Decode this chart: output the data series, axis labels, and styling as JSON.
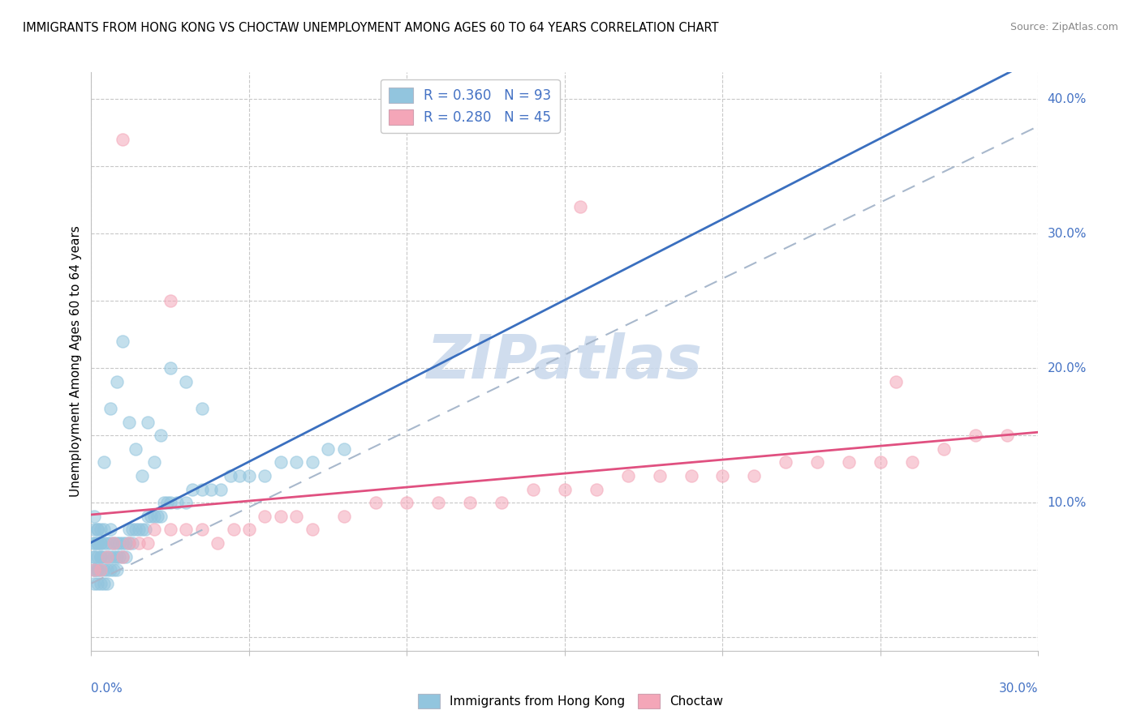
{
  "title": "IMMIGRANTS FROM HONG KONG VS CHOCTAW UNEMPLOYMENT AMONG AGES 60 TO 64 YEARS CORRELATION CHART",
  "source": "Source: ZipAtlas.com",
  "ylabel": "Unemployment Among Ages 60 to 64 years",
  "xlim": [
    0.0,
    0.3
  ],
  "ylim": [
    -0.01,
    0.42
  ],
  "blue_color": "#92c5de",
  "pink_color": "#f4a6b8",
  "blue_line_color": "#3a6fbf",
  "pink_line_color": "#e05080",
  "blue_trend_color": "#9ab8d8",
  "watermark_color": "#c8d8ec",
  "grid_color": "#c8c8c8",
  "right_label_color": "#4472C4",
  "blue_x": [
    0.001,
    0.001,
    0.001,
    0.001,
    0.001,
    0.001,
    0.001,
    0.001,
    0.001,
    0.002,
    0.002,
    0.002,
    0.002,
    0.002,
    0.002,
    0.002,
    0.002,
    0.003,
    0.003,
    0.003,
    0.003,
    0.003,
    0.003,
    0.003,
    0.004,
    0.004,
    0.004,
    0.004,
    0.004,
    0.005,
    0.005,
    0.005,
    0.005,
    0.006,
    0.006,
    0.006,
    0.006,
    0.007,
    0.007,
    0.007,
    0.008,
    0.008,
    0.008,
    0.009,
    0.009,
    0.01,
    0.01,
    0.011,
    0.011,
    0.012,
    0.012,
    0.013,
    0.013,
    0.014,
    0.015,
    0.016,
    0.017,
    0.018,
    0.019,
    0.02,
    0.021,
    0.022,
    0.023,
    0.024,
    0.025,
    0.027,
    0.03,
    0.032,
    0.035,
    0.038,
    0.041,
    0.044,
    0.047,
    0.05,
    0.055,
    0.06,
    0.065,
    0.07,
    0.075,
    0.08,
    0.004,
    0.006,
    0.008,
    0.01,
    0.012,
    0.014,
    0.016,
    0.018,
    0.02,
    0.022,
    0.025,
    0.03,
    0.035
  ],
  "blue_y": [
    0.04,
    0.05,
    0.05,
    0.06,
    0.06,
    0.07,
    0.07,
    0.08,
    0.09,
    0.04,
    0.05,
    0.05,
    0.06,
    0.07,
    0.07,
    0.08,
    0.08,
    0.04,
    0.05,
    0.06,
    0.06,
    0.07,
    0.07,
    0.08,
    0.04,
    0.05,
    0.06,
    0.07,
    0.08,
    0.04,
    0.05,
    0.06,
    0.07,
    0.05,
    0.06,
    0.07,
    0.08,
    0.05,
    0.06,
    0.07,
    0.05,
    0.06,
    0.07,
    0.06,
    0.07,
    0.06,
    0.07,
    0.06,
    0.07,
    0.07,
    0.08,
    0.07,
    0.08,
    0.08,
    0.08,
    0.08,
    0.08,
    0.09,
    0.09,
    0.09,
    0.09,
    0.09,
    0.1,
    0.1,
    0.1,
    0.1,
    0.1,
    0.11,
    0.11,
    0.11,
    0.11,
    0.12,
    0.12,
    0.12,
    0.12,
    0.13,
    0.13,
    0.13,
    0.14,
    0.14,
    0.13,
    0.17,
    0.19,
    0.22,
    0.16,
    0.14,
    0.12,
    0.16,
    0.13,
    0.15,
    0.2,
    0.19,
    0.17
  ],
  "pink_x": [
    0.001,
    0.003,
    0.005,
    0.007,
    0.01,
    0.012,
    0.015,
    0.018,
    0.02,
    0.025,
    0.03,
    0.035,
    0.04,
    0.045,
    0.05,
    0.055,
    0.06,
    0.065,
    0.07,
    0.08,
    0.09,
    0.1,
    0.11,
    0.12,
    0.13,
    0.14,
    0.15,
    0.16,
    0.17,
    0.18,
    0.19,
    0.2,
    0.21,
    0.22,
    0.23,
    0.24,
    0.25,
    0.26,
    0.27,
    0.28,
    0.29,
    0.01,
    0.025,
    0.155,
    0.255
  ],
  "pink_y": [
    0.05,
    0.05,
    0.06,
    0.07,
    0.06,
    0.07,
    0.07,
    0.07,
    0.08,
    0.08,
    0.08,
    0.08,
    0.07,
    0.08,
    0.08,
    0.09,
    0.09,
    0.09,
    0.08,
    0.09,
    0.1,
    0.1,
    0.1,
    0.1,
    0.1,
    0.11,
    0.11,
    0.11,
    0.12,
    0.12,
    0.12,
    0.12,
    0.12,
    0.13,
    0.13,
    0.13,
    0.13,
    0.13,
    0.14,
    0.15,
    0.15,
    0.37,
    0.25,
    0.32,
    0.19
  ]
}
